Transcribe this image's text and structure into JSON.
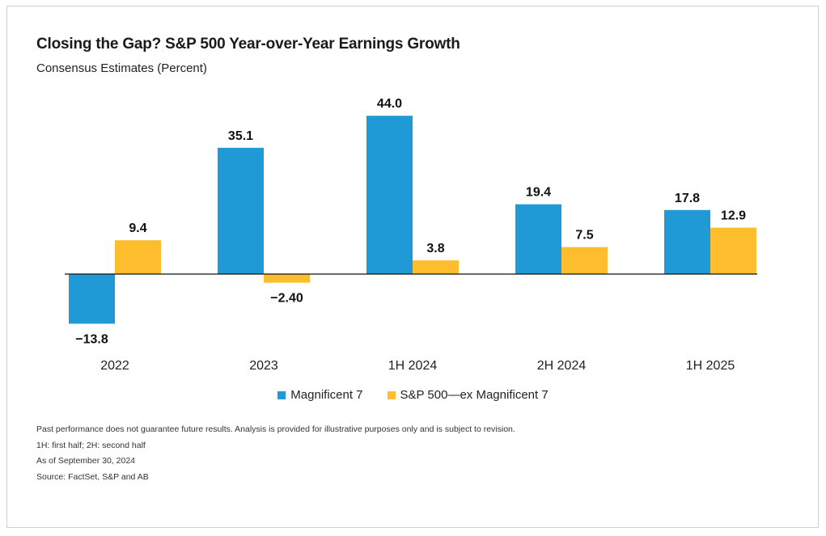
{
  "title": "Closing the Gap? S&P 500 Year-over-Year Earnings Growth",
  "subtitle": "Consensus Estimates (Percent)",
  "colors": {
    "magnificent7": "#1f9ad6",
    "ex_magnificent7": "#fdbd2c",
    "axis": "#111111"
  },
  "chart_data": {
    "type": "bar",
    "categories": [
      "2022",
      "2023",
      "1H 2024",
      "2H 2024",
      "1H 2025"
    ],
    "series": [
      {
        "name": "Magnificent 7",
        "values": [
          -13.8,
          35.1,
          44.0,
          19.4,
          17.8
        ],
        "labels": [
          "−13.8",
          "35.1",
          "44.0",
          "19.4",
          "17.8"
        ]
      },
      {
        "name": "S&P 500—ex Magnificent 7",
        "values": [
          9.4,
          -2.4,
          3.8,
          7.5,
          12.9
        ],
        "labels": [
          "9.4",
          "−2.40",
          "3.8",
          "7.5",
          "12.9"
        ]
      }
    ],
    "ylim": [
      -14,
      45
    ],
    "grid": false,
    "legend": "bottom"
  },
  "legend": {
    "items": [
      "Magnificent 7",
      "S&P 500—ex Magnificent 7"
    ]
  },
  "notes": [
    "Past performance does not guarantee future results. Analysis is provided for illustrative purposes only and is subject to revision.",
    "1H: first half; 2H: second half",
    "As of September 30, 2024",
    "Source: FactSet, S&P and AB"
  ]
}
